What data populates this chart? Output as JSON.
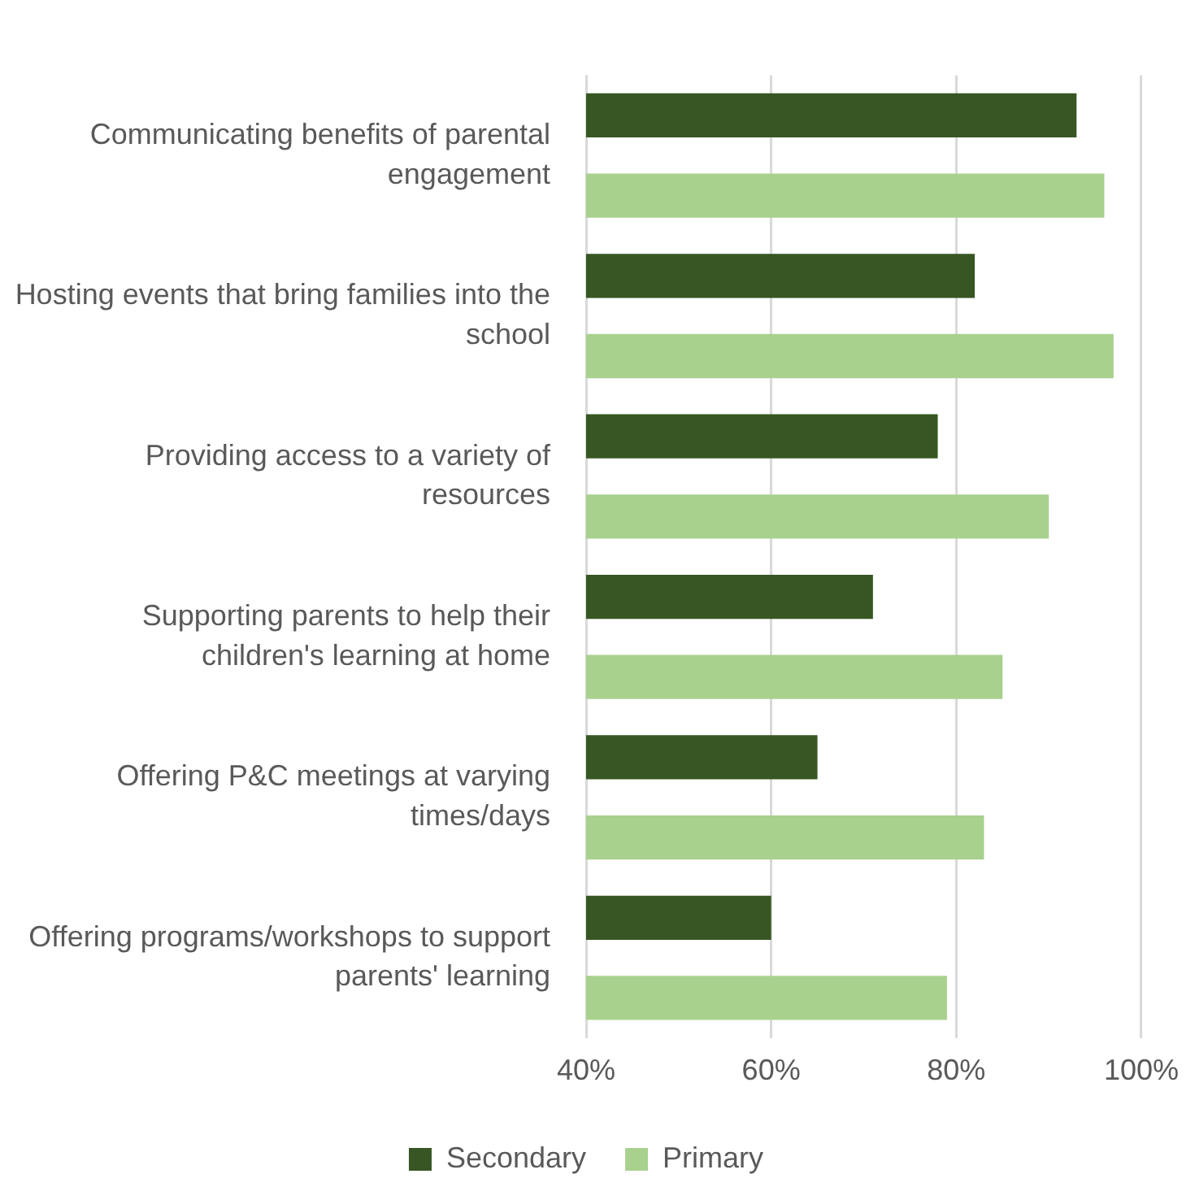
{
  "chart_data": {
    "type": "bar",
    "orientation": "horizontal",
    "categories": [
      "Communicating benefits of parental engagement",
      "Hosting events that bring families into the school",
      "Providing access to a variety of resources",
      "Supporting parents to help their children's learning at home",
      "Offering P&C meetings at varying times/days",
      "Offering programs/workshops to support parents' learning"
    ],
    "series": [
      {
        "name": "Secondary",
        "color": "#375623",
        "values": [
          93,
          82,
          78,
          71,
          65,
          60
        ]
      },
      {
        "name": "Primary",
        "color": "#a9d18e",
        "values": [
          96,
          97,
          90,
          85,
          83,
          79
        ]
      }
    ],
    "xlim": [
      40,
      100
    ],
    "xticks": [
      {
        "value": 40,
        "label": "40%"
      },
      {
        "value": 60,
        "label": "60%"
      },
      {
        "value": 80,
        "label": "80%"
      },
      {
        "value": 100,
        "label": "100%"
      }
    ],
    "grid": "x",
    "legend": "bottom"
  }
}
